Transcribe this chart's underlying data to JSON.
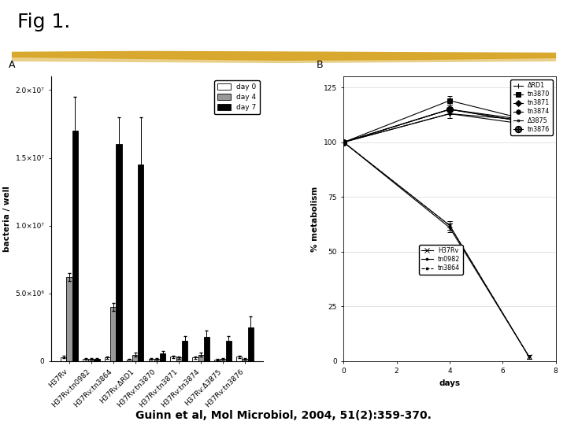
{
  "fig_title": "Fig 1.",
  "citation": "Guinn et al, Mol Microbiol, 2004, 51(2):359-370.",
  "highlight_color": "#D4A017",
  "panel_A": {
    "label": "A",
    "ylabel": "bacteria / well",
    "ytick_labels": [
      "0",
      "5.0×10⁶",
      "1.0×10⁷",
      "1.5×10⁷",
      "2.0×10⁷"
    ],
    "ytick_vals": [
      0,
      5000000,
      10000000,
      15000000,
      20000000
    ],
    "ylim": [
      0,
      21000000
    ],
    "categories": [
      "H37Rv",
      "H37Rv:tn0982",
      "H37Rv:tn3864",
      "H37Rv:ΔRD1",
      "H37Rv:tn3870",
      "H37Rv:tn3871",
      "H37Rv:tn3874",
      "H37Rv:Δ3875",
      "H37Rv:tn3876"
    ],
    "day0": [
      300000,
      180000,
      280000,
      140000,
      180000,
      320000,
      270000,
      130000,
      320000
    ],
    "day4": [
      6200000,
      180000,
      4000000,
      480000,
      180000,
      270000,
      480000,
      180000,
      180000
    ],
    "day7": [
      17000000,
      180000,
      16000000,
      14500000,
      580000,
      1500000,
      1800000,
      1500000,
      2500000
    ],
    "day0_err": [
      80000,
      60000,
      80000,
      50000,
      60000,
      80000,
      80000,
      50000,
      80000
    ],
    "day4_err": [
      300000,
      60000,
      300000,
      150000,
      60000,
      80000,
      130000,
      60000,
      60000
    ],
    "day7_err": [
      2500000,
      60000,
      2000000,
      3500000,
      150000,
      350000,
      450000,
      350000,
      800000
    ],
    "colors_day0": "#ffffff",
    "colors_day4": "#999999",
    "colors_day7": "#000000"
  },
  "panel_B": {
    "label": "B",
    "ylabel": "% metabolism",
    "xlabel": "days",
    "yticks": [
      0,
      25,
      50,
      75,
      100,
      125
    ],
    "ylim": [
      0,
      130
    ],
    "xlim": [
      0,
      8
    ],
    "xticks": [
      0,
      2,
      4,
      6,
      8
    ],
    "days": [
      0,
      4,
      7
    ],
    "upper_series": {
      "ΔRD1": {
        "values": [
          100,
          113,
          110
        ],
        "yerr": [
          1,
          2,
          2
        ],
        "marker": "+",
        "ls": "-"
      },
      "tn3870": {
        "values": [
          100,
          119,
          110
        ],
        "yerr": [
          1,
          2,
          2
        ],
        "marker": "s",
        "ls": "-"
      },
      "tn3871": {
        "values": [
          100,
          115,
          110
        ],
        "yerr": [
          1,
          2,
          2
        ],
        "marker": "D",
        "ls": "-"
      },
      "tn3874": {
        "values": [
          100,
          115,
          109
        ],
        "yerr": [
          1,
          2,
          2
        ],
        "marker": "o",
        "ls": "-"
      },
      "Δ3875": {
        "values": [
          100,
          113,
          108
        ],
        "yerr": [
          1,
          2,
          2
        ],
        "marker": ".",
        "ls": "-"
      },
      "tn3876": {
        "values": [
          100,
          115,
          109
        ],
        "yerr": [
          1,
          2,
          2
        ],
        "marker": "$⊕$",
        "ls": "-"
      }
    },
    "lower_series": {
      "H37Rv": {
        "values": [
          100,
          62,
          2
        ],
        "yerr": [
          1,
          2,
          1
        ],
        "marker": "x",
        "ls": "-"
      },
      "tn0982": {
        "values": [
          100,
          61,
          2
        ],
        "yerr": [
          1,
          2,
          1
        ],
        "marker": ".",
        "ls": "-"
      },
      "tn3864": {
        "values": [
          100,
          62,
          2
        ],
        "yerr": [
          1,
          2,
          1
        ],
        "marker": ".",
        "ls": "--"
      }
    }
  }
}
